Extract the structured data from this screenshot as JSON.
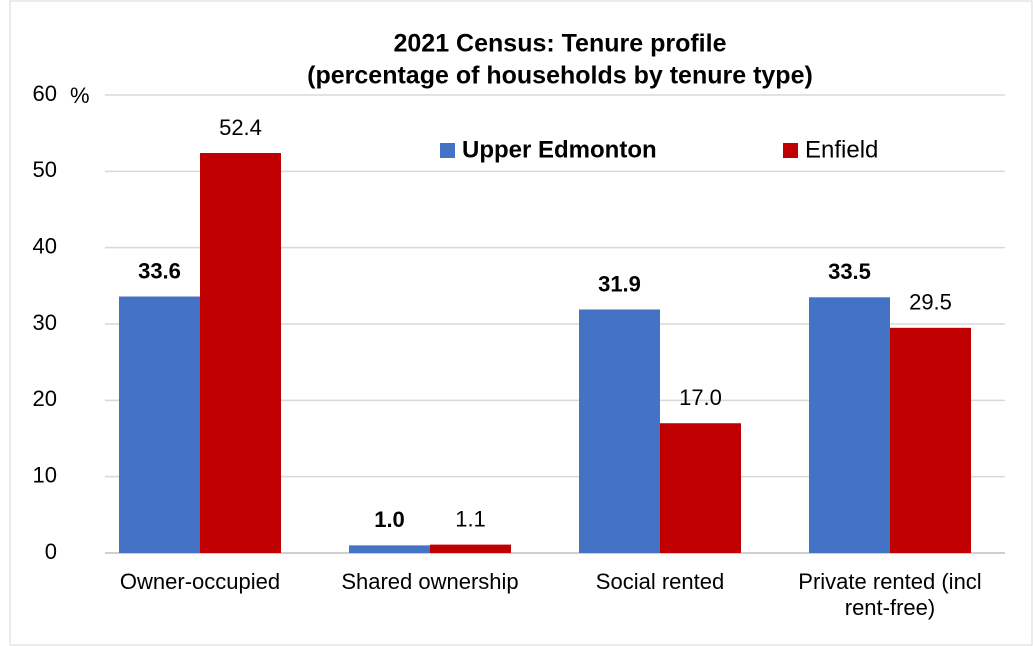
{
  "chart_data": {
    "type": "bar",
    "title": [
      "2021 Census: Tenure profile",
      "(percentage of households by tenure type)"
    ],
    "y_label": "%",
    "categories": [
      "Owner-occupied",
      "Shared ownership",
      "Social rented",
      "Private rented (incl rent-free)"
    ],
    "series": [
      {
        "name": "Upper Edmonton",
        "color": "#4472c4",
        "label_color": "#2f5184",
        "values": [
          33.6,
          1.0,
          31.9,
          33.5
        ],
        "value_labels": [
          "33.6",
          "1.0",
          "31.9",
          "33.5"
        ]
      },
      {
        "name": "Enfield",
        "color": "#c00000",
        "label_color": "#c00000",
        "values": [
          52.4,
          1.1,
          17.0,
          29.5
        ],
        "value_labels": [
          "52.4",
          "1.1",
          "17.0",
          "29.5"
        ]
      }
    ],
    "ylim": [
      0,
      60
    ],
    "yticks": [
      0,
      10,
      20,
      30,
      40,
      50,
      60
    ],
    "grid": true
  }
}
